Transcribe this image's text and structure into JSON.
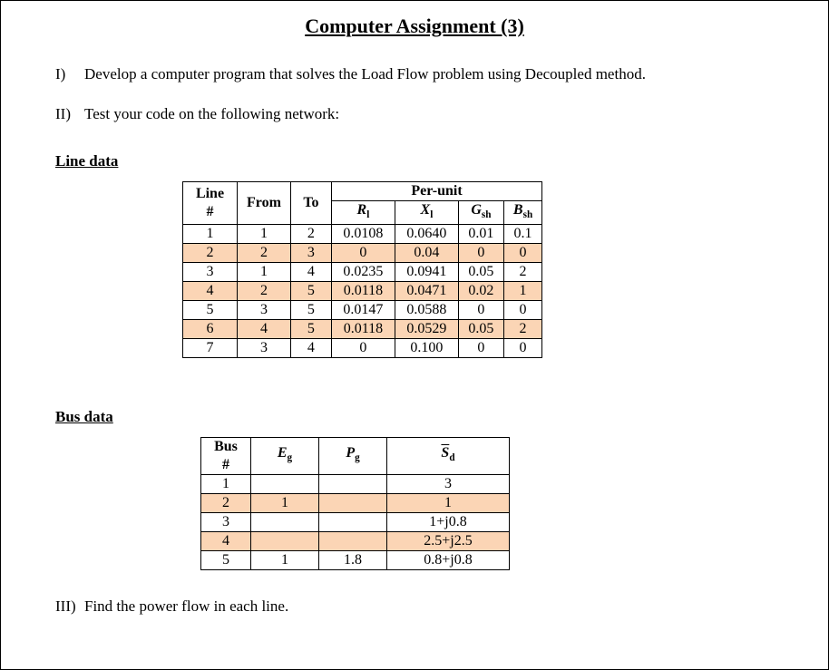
{
  "title": "Computer Assignment (3)",
  "items": {
    "i_marker": "I)",
    "i_text": "Develop a computer program that solves the Load Flow problem using Decoupled method.",
    "ii_marker": "II)",
    "ii_text": "Test your code on the following network:",
    "iii_marker": "III)",
    "iii_text": "Find the power flow in each line."
  },
  "sections": {
    "line_data": "Line data",
    "bus_data": "Bus data"
  },
  "line_table": {
    "super_header": "Per-unit",
    "headers": {
      "line_no": "Line #",
      "from": "From",
      "to": "To",
      "R": "R",
      "R_sub": "l",
      "X": "X",
      "X_sub": "l",
      "G": "G",
      "G_sub": "sh",
      "B": "B",
      "B_sub": "sh"
    },
    "rows": [
      {
        "n": "1",
        "from": "1",
        "to": "2",
        "r": "0.0108",
        "x": "0.0640",
        "g": "0.01",
        "b": "0.1"
      },
      {
        "n": "2",
        "from": "2",
        "to": "3",
        "r": "0",
        "x": "0.04",
        "g": "0",
        "b": "0"
      },
      {
        "n": "3",
        "from": "1",
        "to": "4",
        "r": "0.0235",
        "x": "0.0941",
        "g": "0.05",
        "b": "2"
      },
      {
        "n": "4",
        "from": "2",
        "to": "5",
        "r": "0.0118",
        "x": "0.0471",
        "g": "0.02",
        "b": "1"
      },
      {
        "n": "5",
        "from": "3",
        "to": "5",
        "r": "0.0147",
        "x": "0.0588",
        "g": "0",
        "b": "0"
      },
      {
        "n": "6",
        "from": "4",
        "to": "5",
        "r": "0.0118",
        "x": "0.0529",
        "g": "0.05",
        "b": "2"
      },
      {
        "n": "7",
        "from": "3",
        "to": "4",
        "r": "0",
        "x": "0.100",
        "g": "0",
        "b": "0"
      }
    ],
    "col_widths": [
      "60",
      "55",
      "45",
      "70",
      "70",
      "50",
      "40"
    ],
    "shade_color": "#fbd5b5"
  },
  "bus_table": {
    "headers": {
      "bus_no": "Bus #",
      "E": "E",
      "E_sub": "g",
      "P": "P",
      "P_sub": "g",
      "S": "S",
      "S_sub": "d"
    },
    "rows": [
      {
        "n": "1",
        "e": "",
        "p": "",
        "s": "3"
      },
      {
        "n": "2",
        "e": "1",
        "p": "",
        "s": "1"
      },
      {
        "n": "3",
        "e": "",
        "p": "",
        "s": "1+j0.8"
      },
      {
        "n": "4",
        "e": "",
        "p": "",
        "s": "2.5+j2.5"
      },
      {
        "n": "5",
        "e": "1",
        "p": "1.8",
        "s": "0.8+j0.8"
      }
    ],
    "col_widths": [
      "55",
      "75",
      "75",
      "135"
    ],
    "shade_color": "#fbd5b5"
  }
}
